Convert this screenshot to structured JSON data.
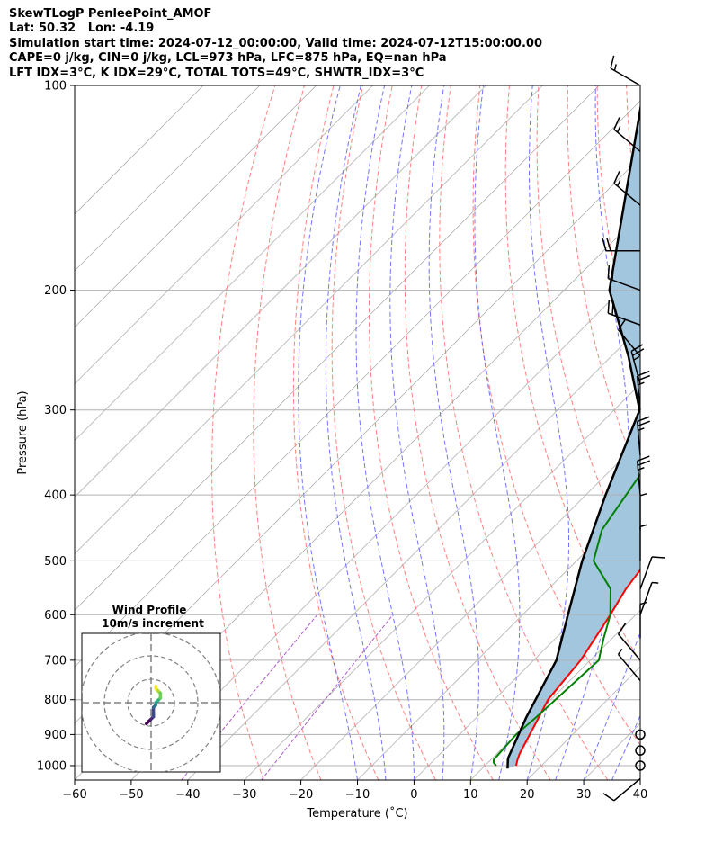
{
  "title_lines": [
    "SkewTLogP PenleePoint_AMOF",
    "Lat: 50.32   Lon: -4.19",
    "Simulation start time: 2024-07-12_00:00:00, Valid time: 2024-07-12T15:00:00.00",
    "CAPE=0 j/kg, CIN=0 j/kg, LCL=973 hPa, LFC=875 hPa, EQ=nan hPa",
    "LFT IDX=3°C, K IDX=29°C, TOTAL TOTS=49°C, SHWTR_IDX=3°C"
  ],
  "colors": {
    "temperature": "#ff0000",
    "dewpoint": "#008000",
    "parcel": "#000000",
    "fill": "#a3c6df",
    "dry_adiabat": "#ff6b6b",
    "moist_adiabat": "#5a5aff",
    "mixing_ratio": "#9b30c0",
    "isotherm": "#b0b0b0",
    "grid": "#b0b0b0"
  },
  "chart_data": {
    "type": "line",
    "title": "SkewTLogP PenleePoint_AMOF",
    "xlabel": "Temperature (˚C)",
    "ylabel": "Pressure (hPa)",
    "xlim": [
      -60,
      40
    ],
    "ylim": [
      1050,
      100
    ],
    "y_scale": "log",
    "x_ticks": [
      "−60",
      "−50",
      "−40",
      "−30",
      "−20",
      "−10",
      "0",
      "10",
      "20",
      "30",
      "40"
    ],
    "y_ticks": [
      "100",
      "200",
      "300",
      "400",
      "500",
      "600",
      "700",
      "800",
      "900",
      "1000"
    ],
    "series": [
      {
        "key": "temperature",
        "x": [
          15.5,
          14.7,
          14.0,
          11.0,
          9.5,
          8.3,
          5.5,
          3.7,
          2.5,
          1.0,
          -1.0,
          -3.0,
          -5.5,
          -8.0,
          -12.0,
          -15.0,
          -20.0,
          -25.0,
          -32.0,
          -45.0
        ],
        "p": [
          1000,
          980,
          960,
          850,
          800,
          700,
          600,
          550,
          500,
          450,
          400,
          350,
          300,
          280,
          260,
          250,
          200,
          180,
          150,
          100
        ]
      },
      {
        "key": "dewpoint",
        "x": [
          12.0,
          11.0,
          10.5,
          10.0,
          10.5,
          11.5,
          8.5,
          5.5,
          1.0,
          -7.0,
          -11.0,
          -15.0,
          -18.0,
          -23.0,
          -25.0,
          -33.0,
          -38.0,
          -39.0,
          -50.0,
          -56.0
        ],
        "p": [
          1000,
          990,
          980,
          900,
          850,
          700,
          650,
          600,
          550,
          500,
          450,
          350,
          300,
          260,
          250,
          200,
          200,
          180,
          150,
          100
        ]
      },
      {
        "key": "parcel",
        "x": [
          14.5,
          13.0,
          12.7,
          8.8,
          4.0,
          -2.0,
          -9.0,
          -16.5,
          -25.5,
          -37.0,
          -52.0,
          -82.0
        ],
        "p": [
          1010,
          980,
          973,
          850,
          700,
          600,
          500,
          400,
          300,
          250,
          200,
          100
        ]
      }
    ],
    "wind_barbs": [
      {
        "p": 100,
        "speed_kt": 15,
        "dir_deg": 300
      },
      {
        "p": 125,
        "speed_kt": 15,
        "dir_deg": 310
      },
      {
        "p": 150,
        "speed_kt": 15,
        "dir_deg": 310
      },
      {
        "p": 175,
        "speed_kt": 20,
        "dir_deg": 270
      },
      {
        "p": 200,
        "speed_kt": 20,
        "dir_deg": 290
      },
      {
        "p": 225,
        "speed_kt": 20,
        "dir_deg": 290
      },
      {
        "p": 250,
        "speed_kt": 10,
        "dir_deg": 320
      },
      {
        "p": 275,
        "speed_kt": 25,
        "dir_deg": 345
      },
      {
        "p": 300,
        "speed_kt": 25,
        "dir_deg": 355
      },
      {
        "p": 350,
        "speed_kt": 25,
        "dir_deg": 355
      },
      {
        "p": 400,
        "speed_kt": 25,
        "dir_deg": 355
      },
      {
        "p": 450,
        "speed_kt": 5,
        "dir_deg": 360
      },
      {
        "p": 500,
        "speed_kt": 5,
        "dir_deg": 360
      },
      {
        "p": 550,
        "speed_kt": 10,
        "dir_deg": 20
      },
      {
        "p": 600,
        "speed_kt": 5,
        "dir_deg": 20
      },
      {
        "p": 650,
        "speed_kt": 5,
        "dir_deg": 360
      },
      {
        "p": 700,
        "speed_kt": 10,
        "dir_deg": 320
      },
      {
        "p": 750,
        "speed_kt": 5,
        "dir_deg": 320
      },
      {
        "p": 900,
        "speed_kt": 0,
        "dir_deg": 0
      },
      {
        "p": 950,
        "speed_kt": 0,
        "dir_deg": 0
      },
      {
        "p": 1000,
        "speed_kt": 0,
        "dir_deg": 0
      },
      {
        "p": 1050,
        "speed_kt": 10,
        "dir_deg": 230
      }
    ],
    "hodograph": {
      "title_line1": "Wind Profile",
      "title_line2": "10m/s increment",
      "ring_speeds_ms": [
        10,
        20,
        30
      ],
      "u": [
        -2,
        -1,
        0,
        1,
        1,
        1,
        2,
        2,
        3,
        3,
        4,
        4,
        3,
        2,
        2
      ],
      "v": [
        -9,
        -8,
        -7,
        -6,
        -5,
        -2,
        -1,
        0,
        1,
        1,
        2,
        4,
        5,
        6,
        7
      ]
    }
  }
}
